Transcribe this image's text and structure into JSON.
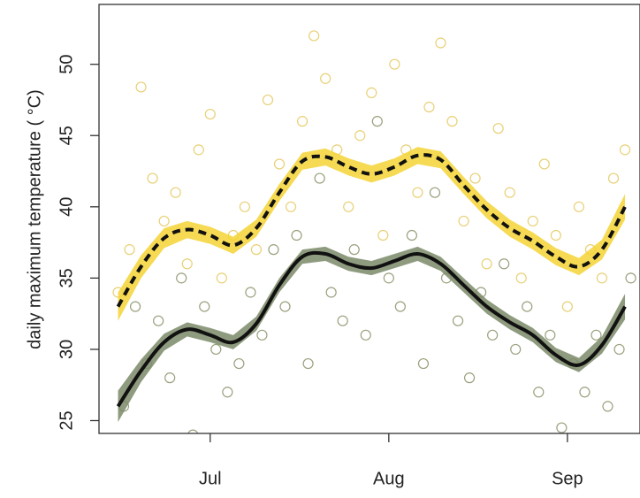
{
  "chart_data": {
    "type": "scatter",
    "y_label": "daily maximum temperature ( °C)",
    "xlim": [
      10.7,
      104.6
    ],
    "ylim": [
      24.1,
      54.2
    ],
    "xticks": [
      {
        "value": 30,
        "label": "Jul"
      },
      {
        "value": 61,
        "label": "Aug"
      },
      {
        "value": 92,
        "label": "Sep"
      }
    ],
    "yticks": [
      25,
      30,
      35,
      40,
      45,
      50
    ],
    "series": [
      {
        "color": "#e2c452",
        "x": [
          14,
          16,
          18,
          20,
          22,
          24,
          26,
          28,
          30,
          32,
          34,
          36,
          38,
          40,
          42,
          44,
          46,
          48,
          50,
          52,
          54,
          56,
          58,
          60,
          62,
          64,
          66,
          68,
          70,
          72,
          74,
          76,
          78,
          80,
          82,
          84,
          86,
          88,
          90,
          92,
          94,
          96,
          98,
          100,
          102
        ],
        "values": [
          34,
          37,
          48.4,
          42,
          39,
          41,
          36,
          44,
          46.5,
          35,
          38,
          40,
          37,
          47.5,
          43,
          40,
          46,
          52,
          49,
          44,
          40,
          45,
          48,
          38,
          50,
          44,
          41,
          47,
          51.5,
          46,
          39,
          42,
          36,
          45.5,
          41,
          35,
          39,
          43,
          38,
          33,
          40,
          37,
          35,
          42,
          44
        ]
      },
      {
        "color": "#7e8a5c",
        "x": [
          15,
          17,
          19,
          21,
          23,
          25,
          27,
          29,
          31,
          33,
          35,
          37,
          39,
          41,
          43,
          45,
          47,
          49,
          51,
          53,
          55,
          57,
          59,
          61,
          63,
          65,
          67,
          69,
          71,
          73,
          75,
          77,
          79,
          81,
          83,
          85,
          87,
          89,
          91,
          93,
          95,
          97,
          99,
          101,
          103
        ],
        "values": [
          26,
          33,
          29,
          32,
          28,
          35,
          24,
          33,
          30,
          27,
          29,
          34,
          31,
          37,
          33,
          38,
          29,
          42,
          34,
          32,
          37,
          31,
          46,
          35,
          33,
          38,
          29,
          41,
          35,
          32,
          28,
          34,
          31,
          36,
          30,
          33,
          27,
          31,
          24.5,
          29,
          27,
          31,
          26,
          30,
          35
        ]
      }
    ],
    "smooths": [
      {
        "color": "#f5d435",
        "line_color": "#111111",
        "style": "dashed",
        "x": [
          14,
          18,
          22,
          26,
          30,
          34,
          38,
          42,
          46,
          50,
          54,
          58,
          62,
          66,
          70,
          74,
          78,
          82,
          86,
          90,
          94,
          98,
          102
        ],
        "values": [
          33,
          35.8,
          37.8,
          38.4,
          38,
          37.3,
          38.5,
          41,
          43.2,
          43.5,
          42.8,
          42.3,
          42.8,
          43.6,
          43.3,
          41.5,
          39.8,
          38.5,
          37.6,
          36.5,
          35.8,
          37,
          40
        ],
        "ci": [
          1,
          0.8,
          0.7,
          0.6,
          0.6,
          0.6,
          0.6,
          0.6,
          0.6,
          0.6,
          0.6,
          0.6,
          0.6,
          0.6,
          0.6,
          0.6,
          0.6,
          0.6,
          0.6,
          0.6,
          0.6,
          0.7,
          0.9
        ]
      },
      {
        "color": "#7b8a68",
        "line_color": "#111111",
        "style": "solid",
        "x": [
          14,
          18,
          22,
          26,
          30,
          34,
          38,
          42,
          46,
          50,
          54,
          58,
          62,
          66,
          70,
          74,
          78,
          82,
          86,
          90,
          94,
          98,
          102
        ],
        "values": [
          26,
          28.5,
          30.5,
          31.4,
          31,
          30.5,
          31.8,
          34.5,
          36.5,
          36.7,
          36,
          35.7,
          36.2,
          36.7,
          36,
          34.5,
          33,
          31.9,
          31,
          29.6,
          28.9,
          30.3,
          33
        ],
        "ci": [
          1.1,
          0.8,
          0.6,
          0.5,
          0.5,
          0.5,
          0.5,
          0.5,
          0.5,
          0.5,
          0.5,
          0.5,
          0.5,
          0.5,
          0.5,
          0.5,
          0.5,
          0.5,
          0.5,
          0.5,
          0.5,
          0.6,
          0.9
        ]
      }
    ]
  }
}
